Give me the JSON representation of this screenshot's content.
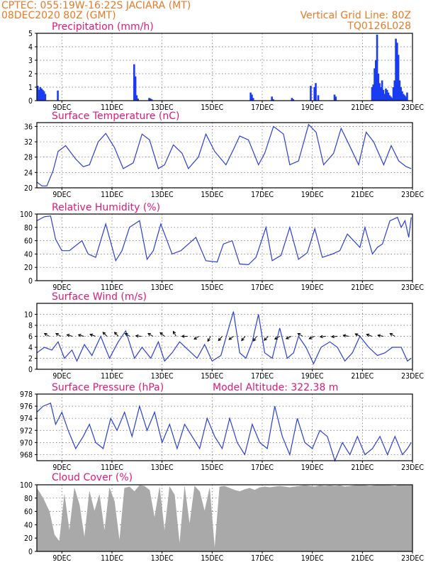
{
  "header": {
    "station_line": "CPTEC:   055:19W-16:22S   JACIARA (MT)",
    "date_line": "08DEC2020 80Z (GMT)",
    "grid_line": "Vertical Grid Line: 80Z",
    "code": "TQ0126L028"
  },
  "colors": {
    "header": "#e87a2a",
    "panel_title": "#e0187a",
    "series_line": "#2a3ed8",
    "precip_bars": "#1a3cf0",
    "cloud_fill": "#a9a9a9",
    "wind_arrows": "#000000"
  },
  "x_ticks": [
    "9DEC",
    "11DEC",
    "13DEC",
    "15DEC",
    "17DEC",
    "19DEC",
    "21DEC",
    "23DEC"
  ],
  "chart_data": [
    {
      "id": "precipitation",
      "type": "bar",
      "title": "Precipitation   (mm/h)",
      "x": [
        0.0,
        0.05,
        0.1,
        0.15,
        0.2,
        0.25,
        0.3,
        0.8,
        3.85,
        3.9,
        3.95,
        4.0,
        4.45,
        4.5,
        4.55,
        8.5,
        8.55,
        8.6,
        9.35,
        9.4,
        10.15,
        10.2,
        10.9,
        11.05,
        11.1,
        11.2,
        11.85,
        11.9,
        13.35,
        13.4,
        13.45,
        13.5,
        13.55,
        13.6,
        13.65,
        13.7,
        13.75,
        13.8,
        13.85,
        13.9,
        13.95,
        14.0,
        14.05,
        14.1,
        14.15,
        14.2,
        14.25,
        14.3,
        14.35,
        14.4,
        14.45,
        14.5,
        14.55,
        14.6,
        14.65,
        14.7,
        14.75
      ],
      "y_series": [
        {
          "name": "",
          "values": [
            1.1,
            0.8,
            1.0,
            0.9,
            0.8,
            0.7,
            0.5,
            0.75,
            2.7,
            1.8,
            0.4,
            0.15,
            0.2,
            0.15,
            0.1,
            0.6,
            0.45,
            0.2,
            0.3,
            0.1,
            0.2,
            0.1,
            1.1,
            1.0,
            1.3,
            0.4,
            0.45,
            0.3,
            1.0,
            1.2,
            2.4,
            3.0,
            4.9,
            2.0,
            1.3,
            1.0,
            1.5,
            0.8,
            0.5,
            0.9,
            0.8,
            0.6,
            0.4,
            0.3,
            0.2,
            1.0,
            1.5,
            4.6,
            4.3,
            3.4,
            1.5,
            1.0,
            0.7,
            0.5,
            0.4,
            0.3,
            0.6
          ]
        }
      ],
      "ylim": [
        0,
        5
      ],
      "yticks": [
        0,
        1,
        2,
        3,
        4,
        5
      ]
    },
    {
      "id": "surface_temperature",
      "type": "line",
      "title": "Surface Temperature   (nC)",
      "x": [
        0.0,
        0.2,
        0.4,
        0.65,
        0.85,
        1.15,
        1.55,
        1.85,
        2.1,
        2.45,
        2.75,
        3.1,
        3.45,
        3.85,
        4.2,
        4.5,
        4.85,
        5.1,
        5.45,
        5.8,
        6.05,
        6.45,
        6.75,
        7.1,
        7.55,
        7.85,
        8.1,
        8.45,
        8.85,
        9.1,
        9.45,
        9.85,
        10.1,
        10.45,
        10.85,
        11.15,
        11.45,
        11.85,
        12.15,
        12.45,
        12.85,
        13.15,
        13.45,
        13.85,
        14.15,
        14.45,
        14.75,
        14.95
      ],
      "y_series": [
        {
          "name": "",
          "values": [
            21.5,
            20.5,
            20.5,
            24.5,
            29.5,
            31,
            27.5,
            25.5,
            26,
            32,
            34.2,
            30.5,
            25,
            26.5,
            34,
            32.5,
            25,
            26,
            31.2,
            29,
            25,
            28,
            34,
            29.5,
            26,
            30,
            33.5,
            32.5,
            26,
            29,
            36,
            34,
            26,
            27,
            36.5,
            34.5,
            26,
            29,
            35.5,
            31.5,
            26,
            34.5,
            32,
            26,
            31,
            27,
            25.5,
            25
          ]
        }
      ],
      "ylim": [
        20,
        37
      ],
      "yticks": [
        20,
        24,
        28,
        32,
        36
      ]
    },
    {
      "id": "relative_humidity",
      "type": "line",
      "title": "Relative Humidity   (%)",
      "x": [
        0.0,
        0.3,
        0.55,
        0.75,
        1.0,
        1.3,
        1.8,
        2.05,
        2.35,
        2.75,
        3.15,
        3.4,
        3.7,
        4.1,
        4.4,
        4.65,
        4.95,
        5.4,
        5.75,
        6.05,
        6.35,
        6.75,
        7.2,
        7.45,
        7.8,
        8.1,
        8.45,
        8.75,
        9.15,
        9.4,
        9.75,
        10.1,
        10.45,
        10.8,
        11.1,
        11.4,
        11.8,
        12.1,
        12.4,
        12.9,
        13.1,
        13.4,
        13.6,
        13.8,
        14.1,
        14.4,
        14.55,
        14.7,
        14.85,
        14.95
      ],
      "y_series": [
        {
          "name": "",
          "values": [
            90,
            96,
            97,
            62,
            45,
            45,
            60,
            40,
            35,
            85,
            30,
            45,
            80,
            90,
            32,
            45,
            85,
            40,
            45,
            55,
            65,
            30,
            28,
            55,
            60,
            25,
            24,
            35,
            80,
            30,
            38,
            80,
            32,
            42,
            78,
            35,
            40,
            45,
            70,
            50,
            80,
            40,
            50,
            55,
            90,
            95,
            80,
            90,
            65,
            95
          ]
        }
      ],
      "ylim": [
        0,
        100
      ],
      "yticks": [
        0,
        20,
        40,
        60,
        80,
        100
      ]
    },
    {
      "id": "surface_wind",
      "type": "line",
      "title": "Surface Wind   (m/s)",
      "x": [
        0.0,
        0.3,
        0.6,
        0.85,
        1.1,
        1.4,
        1.6,
        1.9,
        2.2,
        2.55,
        2.9,
        3.25,
        3.55,
        3.9,
        4.2,
        4.55,
        4.85,
        5.1,
        5.4,
        5.7,
        6.05,
        6.4,
        6.7,
        7.0,
        7.35,
        7.6,
        7.85,
        8.1,
        8.35,
        8.6,
        8.85,
        9.1,
        9.4,
        9.7,
        10.0,
        10.25,
        10.45,
        10.75,
        11.05,
        11.35,
        11.7,
        12.0,
        12.3,
        12.6,
        12.9,
        13.25,
        13.6,
        13.9,
        14.2,
        14.55,
        14.8,
        14.95
      ],
      "y_series": [
        {
          "name": "",
          "values": [
            3,
            4,
            3.5,
            5,
            2,
            3.5,
            1.5,
            4.5,
            2.5,
            6,
            2,
            5,
            7,
            2,
            4,
            2,
            5,
            1.5,
            3,
            5,
            3.5,
            2,
            4.5,
            1.5,
            2.5,
            6.5,
            10.5,
            3,
            2,
            5,
            10,
            3,
            2,
            7.5,
            2,
            3,
            6,
            4,
            1,
            4,
            5,
            4,
            1.5,
            3,
            6,
            4,
            2.5,
            3,
            4,
            4,
            1.5,
            2
          ]
        }
      ],
      "arrows_angle_deg": [
        210,
        210,
        195,
        195,
        200,
        225,
        225,
        210,
        185,
        210,
        220,
        240,
        180,
        150,
        120,
        130,
        145,
        130,
        125,
        135,
        150,
        155,
        210,
        155,
        175,
        175,
        190,
        205,
        200,
        190,
        210
      ],
      "ylim": [
        0,
        12
      ],
      "yticks": [
        0,
        2,
        4,
        6,
        8,
        10
      ]
    },
    {
      "id": "surface_pressure",
      "type": "line",
      "title": "Surface Pressure   (hPa)",
      "annotation": "Model Altitude:  322.38  m",
      "x": [
        0.0,
        0.25,
        0.55,
        0.75,
        1.0,
        1.25,
        1.55,
        1.85,
        2.1,
        2.35,
        2.65,
        2.95,
        3.2,
        3.5,
        3.8,
        4.1,
        4.4,
        4.7,
        5.0,
        5.3,
        5.6,
        5.9,
        6.2,
        6.5,
        6.8,
        7.1,
        7.4,
        7.7,
        8.0,
        8.3,
        8.6,
        8.9,
        9.2,
        9.5,
        9.8,
        10.1,
        10.4,
        10.7,
        11.0,
        11.3,
        11.6,
        11.9,
        12.2,
        12.5,
        12.8,
        13.1,
        13.4,
        13.7,
        14.0,
        14.3,
        14.6,
        14.8,
        14.95
      ],
      "y_series": [
        {
          "name": "",
          "values": [
            975,
            976,
            976.5,
            973,
            975,
            972,
            969,
            971,
            973,
            970,
            969,
            974,
            972,
            975,
            971,
            976,
            972,
            975,
            970,
            973,
            969,
            973,
            971,
            969,
            974,
            971,
            969,
            974,
            970,
            968,
            973,
            970,
            969,
            976,
            971,
            968,
            974,
            970,
            969,
            972,
            971,
            967,
            970,
            968,
            971,
            968,
            969,
            971,
            968,
            971,
            968,
            969,
            970
          ]
        }
      ],
      "ylim": [
        967,
        978
      ],
      "yticks": [
        968,
        970,
        972,
        974,
        976,
        978
      ]
    },
    {
      "id": "cloud_cover",
      "type": "area",
      "title": "Cloud Cover   (%)",
      "x": [
        0.0,
        0.25,
        0.5,
        0.7,
        0.9,
        1.1,
        1.3,
        1.5,
        1.7,
        1.9,
        2.1,
        2.3,
        2.5,
        2.7,
        2.9,
        3.1,
        3.3,
        3.5,
        3.7,
        3.9,
        4.1,
        4.3,
        4.5,
        4.7,
        4.9,
        5.1,
        5.3,
        5.5,
        5.7,
        5.9,
        6.1,
        6.3,
        6.5,
        6.7,
        6.9,
        7.1,
        7.3,
        7.5,
        7.7,
        7.9,
        8.1,
        8.3,
        8.5,
        8.7,
        8.9,
        9.1,
        9.3,
        9.5,
        9.7,
        9.9,
        10.1,
        10.3,
        10.5,
        10.7,
        10.9,
        11.1,
        11.3,
        11.5,
        11.7,
        11.9,
        12.1,
        12.3,
        12.5,
        12.7,
        12.9,
        13.1,
        13.3,
        13.5,
        13.7,
        13.9,
        14.1,
        14.3,
        14.5,
        14.7,
        14.9
      ],
      "y_series": [
        {
          "name": "",
          "values": [
            95,
            80,
            60,
            25,
            15,
            85,
            30,
            95,
            70,
            20,
            90,
            60,
            85,
            30,
            95,
            75,
            15,
            95,
            97,
            90,
            99,
            98,
            92,
            50,
            96,
            30,
            97,
            85,
            10,
            97,
            40,
            98,
            90,
            60,
            95,
            3,
            97,
            98,
            95,
            92,
            90,
            93,
            95,
            92,
            96,
            97,
            96,
            97,
            98,
            97,
            96,
            97,
            98,
            99,
            98,
            97,
            99,
            98,
            99,
            98,
            99,
            97,
            98,
            99,
            100,
            99,
            98,
            99,
            100,
            99,
            99,
            98,
            100,
            99,
            99
          ]
        }
      ],
      "ylim": [
        0,
        100
      ],
      "yticks": [
        0,
        20,
        40,
        60,
        80,
        100
      ]
    }
  ]
}
